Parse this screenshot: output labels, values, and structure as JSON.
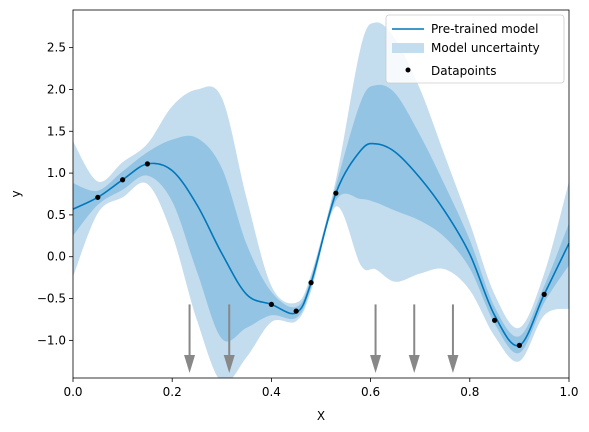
{
  "chart_data": {
    "type": "line",
    "xlabel": "X",
    "ylabel": "y",
    "xlim": [
      0.0,
      1.0
    ],
    "ylim": [
      -1.45,
      2.95
    ],
    "xticks": [
      "0.0",
      "0.2",
      "0.4",
      "0.6",
      "0.8",
      "1.0"
    ],
    "yticks": [
      "−1.0",
      "−0.5",
      "0.0",
      "0.5",
      "1.0",
      "1.5",
      "2.0",
      "2.5"
    ],
    "grid": false,
    "legend_position": "top-right",
    "legend": [
      "Pre-trained model",
      "Model uncertainty",
      "Datapoints"
    ],
    "colors": {
      "line": "#0077bb",
      "band_outer": "#c3dcee",
      "band_inner": "#94c4e3",
      "points": "#000000",
      "arrows": "#888888"
    },
    "mean": {
      "x": [
        0.0,
        0.05,
        0.1,
        0.15,
        0.2,
        0.25,
        0.3,
        0.35,
        0.4,
        0.45,
        0.48,
        0.53,
        0.58,
        0.61,
        0.65,
        0.7,
        0.75,
        0.8,
        0.85,
        0.9,
        0.95,
        1.0
      ],
      "y": [
        0.57,
        0.71,
        0.92,
        1.11,
        1.03,
        0.62,
        0.04,
        -0.45,
        -0.57,
        -0.67,
        -0.31,
        0.76,
        1.27,
        1.35,
        1.25,
        0.94,
        0.54,
        0.03,
        -0.7,
        -1.06,
        -0.45,
        0.16
      ]
    },
    "band_inner": {
      "upper": [
        0.88,
        0.79,
        1.02,
        1.25,
        1.4,
        1.42,
        1.06,
        0.15,
        -0.42,
        -0.6,
        -0.25,
        0.85,
        1.85,
        2.05,
        1.95,
        1.45,
        0.85,
        0.2,
        -0.6,
        -0.95,
        -0.35,
        0.4
      ],
      "lower": [
        0.25,
        0.62,
        0.8,
        0.97,
        0.66,
        -0.18,
        -0.98,
        -0.85,
        -0.7,
        -0.73,
        -0.37,
        0.67,
        0.69,
        0.65,
        0.55,
        0.43,
        0.23,
        -0.14,
        -0.8,
        -1.15,
        -0.55,
        -0.1
      ]
    },
    "band_outer": {
      "upper": [
        1.38,
        0.9,
        1.13,
        1.35,
        1.8,
        2.0,
        1.9,
        0.7,
        -0.35,
        -0.55,
        -0.21,
        0.92,
        2.5,
        2.8,
        2.6,
        2.0,
        1.2,
        0.4,
        -0.45,
        -0.85,
        -0.2,
        0.9
      ],
      "lower": [
        -0.24,
        0.52,
        0.71,
        0.87,
        0.26,
        -0.76,
        -1.5,
        -1.2,
        -0.78,
        -0.77,
        -0.41,
        0.6,
        -0.1,
        -0.15,
        -0.3,
        -0.2,
        -0.15,
        -0.4,
        -0.95,
        -1.25,
        -0.7,
        -0.62
      ]
    },
    "datapoints": {
      "x": [
        0.05,
        0.1,
        0.15,
        0.4,
        0.45,
        0.48,
        0.53,
        0.85,
        0.9,
        0.95
      ],
      "y": [
        0.71,
        0.92,
        1.11,
        -0.57,
        -0.65,
        -0.31,
        0.76,
        -0.76,
        -1.06,
        -0.45
      ]
    },
    "arrows": {
      "x": [
        0.235,
        0.315,
        0.61,
        0.688,
        0.766
      ],
      "y_top": -0.57,
      "y_tip": -1.39
    }
  }
}
